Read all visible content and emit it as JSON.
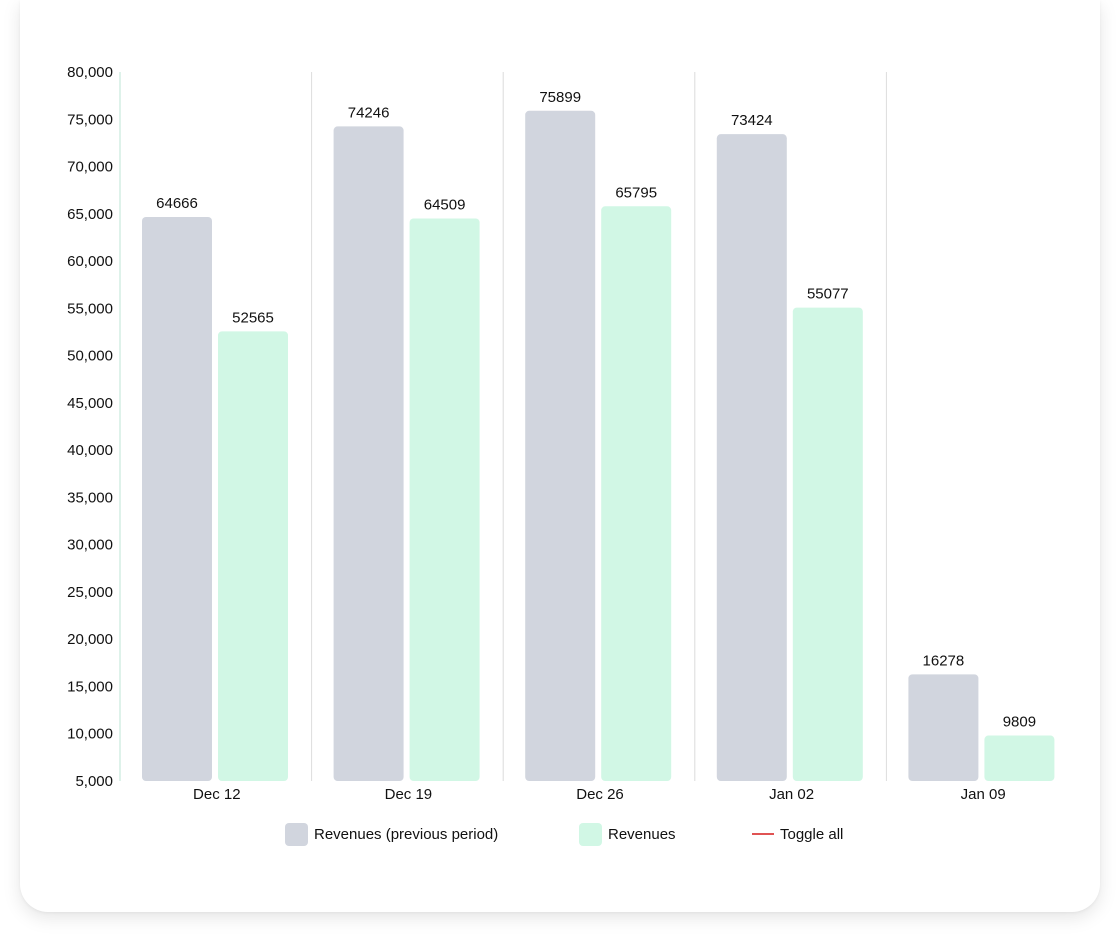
{
  "chart_data": {
    "type": "bar",
    "categories": [
      "Dec 12",
      "Dec 19",
      "Dec 26",
      "Jan 02",
      "Jan 09"
    ],
    "series": [
      {
        "name": "Revenues (previous period)",
        "values": [
          64666,
          74246,
          75899,
          73424,
          16278
        ],
        "color": "#d1d5de"
      },
      {
        "name": "Revenues",
        "values": [
          52565,
          64509,
          65795,
          55077,
          9809
        ],
        "color": "#d1f7e5"
      }
    ],
    "ylim": [
      5000,
      80000
    ],
    "ytick_step": 5000,
    "yticks": [
      "5,000",
      "10,000",
      "15,000",
      "20,000",
      "25,000",
      "30,000",
      "35,000",
      "40,000",
      "45,000",
      "50,000",
      "55,000",
      "60,000",
      "65,000",
      "70,000",
      "75,000",
      "80,000"
    ],
    "grid": "vertical-category-separators",
    "legend_position": "bottom"
  },
  "legend": {
    "items": [
      {
        "label": "Revenues (previous period)",
        "color": "#d1d5de"
      },
      {
        "label": "Revenues",
        "color": "#d1f7e5"
      }
    ],
    "toggle_label": "Toggle all",
    "toggle_color": "#e05353"
  }
}
